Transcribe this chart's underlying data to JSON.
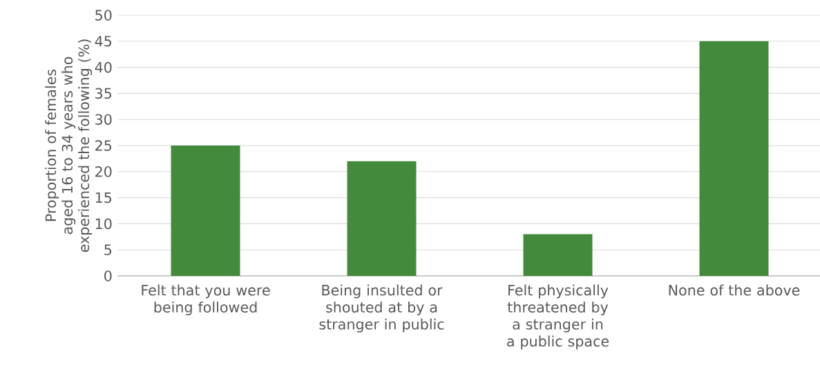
{
  "chart_data": {
    "type": "bar",
    "ylabel": "Proportion of females aged 16 to 34 years who experienced the following (%)",
    "categories": [
      "Felt that you were being followed",
      "Being insulted or shouted at by a stranger in public",
      "Felt physically threatened by a stranger in a public space",
      "None of the above"
    ],
    "values": [
      25,
      22,
      8,
      45
    ],
    "color": "#438a3c",
    "ylim": [
      0,
      50
    ],
    "yticks": [
      0,
      5,
      10,
      15,
      20,
      25,
      30,
      35,
      40,
      45,
      50
    ],
    "grid": "y"
  }
}
